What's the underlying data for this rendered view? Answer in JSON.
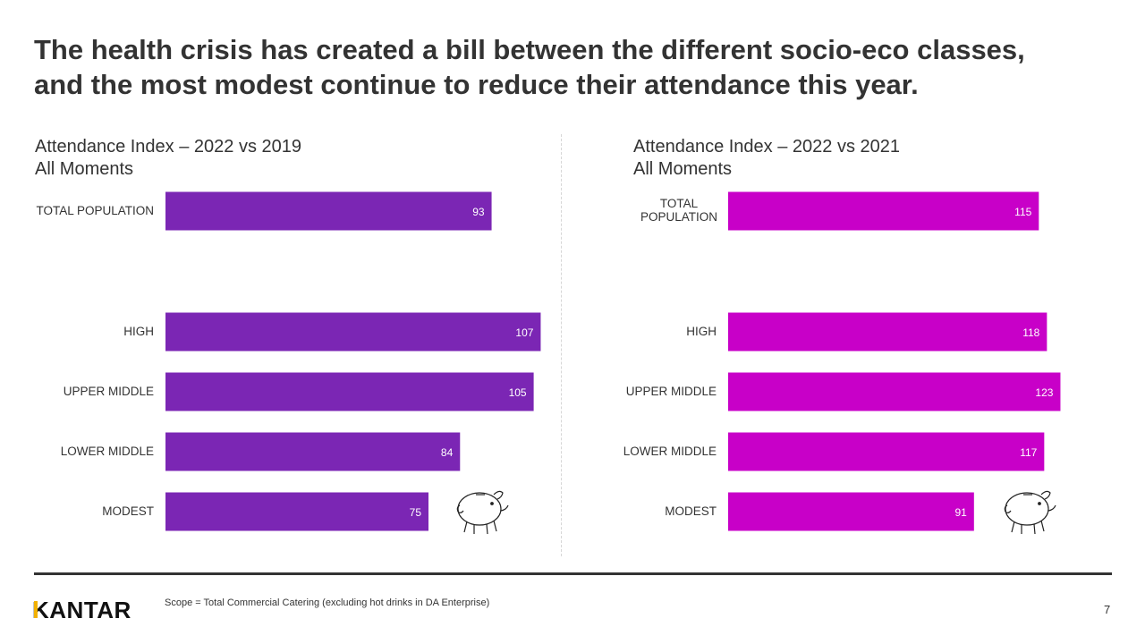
{
  "title": {
    "line1": "The health crisis has created a bill between the different socio-eco classes,",
    "line2": "and the most modest continue to reduce their attendance this year."
  },
  "chart_data": [
    {
      "type": "bar",
      "orientation": "horizontal",
      "title": "Attendance  Index – 2022 vs 2019",
      "subtitle": "All Moments",
      "color": "#7b26b4",
      "categories": [
        "TOTAL POPULATION",
        "HIGH",
        "UPPER MIDDLE",
        "LOWER MIDDLE",
        "MODEST"
      ],
      "values": [
        93,
        107,
        105,
        84,
        75
      ],
      "xlim": [
        0,
        120
      ]
    },
    {
      "type": "bar",
      "orientation": "horizontal",
      "title": "Attendance  Index – 2022 vs 2021",
      "subtitle": "All Moments",
      "color": "#c800c8",
      "categories": [
        "TOTAL POPULATION",
        "HIGH",
        "UPPER MIDDLE",
        "LOWER MIDDLE",
        "MODEST"
      ],
      "values": [
        115,
        118,
        123,
        117,
        91
      ],
      "xlim": [
        0,
        130
      ]
    }
  ],
  "footer": {
    "logo": "KANTAR",
    "scope": "Scope = Total Commercial Catering (excluding hot drinks in DA Enterprise)",
    "page_number": "7"
  },
  "icons": [
    "piggy-bank-icon",
    "piggy-bank-icon"
  ]
}
